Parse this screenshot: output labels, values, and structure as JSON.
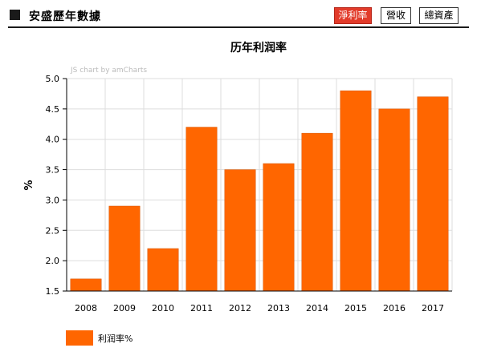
{
  "header": {
    "title": "安盛歷年數據",
    "tabs": [
      {
        "label": "淨利率",
        "active": true
      },
      {
        "label": "營收",
        "active": false
      },
      {
        "label": "總資產",
        "active": false
      }
    ]
  },
  "chart_data": {
    "type": "bar",
    "title": "历年利润率",
    "credit": "JS chart by amCharts",
    "xlabel": "",
    "ylabel": "%",
    "ylim": [
      1.5,
      5.0
    ],
    "yticks": [
      1.5,
      2.0,
      2.5,
      3.0,
      3.5,
      4.0,
      4.5,
      5.0
    ],
    "grid": true,
    "legend_position": "bottom-left",
    "categories": [
      "2008",
      "2009",
      "2010",
      "2011",
      "2012",
      "2013",
      "2014",
      "2015",
      "2016",
      "2017"
    ],
    "series": [
      {
        "name": "利润率%",
        "color": "#ff6600",
        "values": [
          1.7,
          2.9,
          2.2,
          4.2,
          3.5,
          3.6,
          4.1,
          4.8,
          4.5,
          4.7
        ]
      }
    ]
  }
}
